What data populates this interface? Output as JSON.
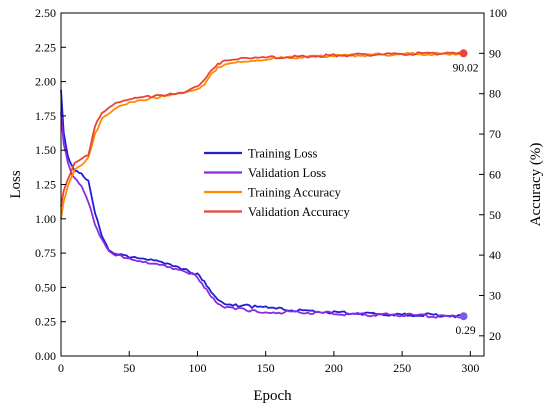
{
  "chart_data": {
    "type": "line",
    "xlabel": "Epoch",
    "ylabel_left": "Loss",
    "ylabel_right": "Accuracy (%)",
    "xlim": [
      0,
      310
    ],
    "ylim_left": [
      0.0,
      2.5
    ],
    "ylim_right": [
      15,
      100
    ],
    "x_ticks": [
      "0",
      "50",
      "100",
      "150",
      "200",
      "250",
      "300"
    ],
    "y_left_ticks": [
      "0.00",
      "0.25",
      "0.50",
      "0.75",
      "1.00",
      "1.25",
      "1.50",
      "1.75",
      "2.00",
      "2.25",
      "2.50"
    ],
    "y_right_ticks": [
      "20",
      "30",
      "40",
      "50",
      "60",
      "70",
      "80",
      "90",
      "100"
    ],
    "legend_position": "center",
    "grid": false,
    "series": [
      {
        "name": "Training Loss",
        "axis": "left",
        "color": "#1f1fd6",
        "x": [
          0,
          2,
          5,
          8,
          10,
          15,
          20,
          25,
          30,
          35,
          40,
          50,
          60,
          70,
          80,
          90,
          100,
          105,
          110,
          115,
          120,
          130,
          140,
          150,
          175,
          200,
          225,
          250,
          275,
          295
        ],
        "y": [
          1.94,
          1.62,
          1.45,
          1.38,
          1.35,
          1.32,
          1.28,
          1.05,
          0.88,
          0.78,
          0.75,
          0.72,
          0.7,
          0.69,
          0.66,
          0.63,
          0.59,
          0.55,
          0.47,
          0.41,
          0.39,
          0.37,
          0.36,
          0.35,
          0.33,
          0.32,
          0.31,
          0.3,
          0.3,
          0.29
        ]
      },
      {
        "name": "Validation Loss",
        "axis": "left",
        "color": "#8a2be2",
        "x": [
          0,
          2,
          5,
          8,
          10,
          15,
          20,
          25,
          30,
          35,
          40,
          50,
          60,
          70,
          80,
          90,
          100,
          105,
          110,
          115,
          120,
          130,
          140,
          150,
          175,
          200,
          225,
          250,
          275,
          295
        ],
        "y": [
          1.78,
          1.55,
          1.42,
          1.33,
          1.3,
          1.25,
          1.12,
          0.95,
          0.84,
          0.76,
          0.73,
          0.71,
          0.69,
          0.68,
          0.65,
          0.62,
          0.58,
          0.5,
          0.43,
          0.37,
          0.35,
          0.34,
          0.33,
          0.32,
          0.32,
          0.31,
          0.3,
          0.3,
          0.29,
          0.29
        ]
      },
      {
        "name": "Training Accuracy",
        "axis": "right",
        "color": "#ff8c00",
        "x": [
          0,
          2,
          5,
          10,
          15,
          20,
          25,
          30,
          40,
          50,
          60,
          70,
          80,
          90,
          100,
          105,
          110,
          115,
          120,
          130,
          140,
          150,
          175,
          200,
          225,
          250,
          275,
          295
        ],
        "y": [
          49.0,
          53.0,
          57.0,
          61.0,
          62.0,
          64.0,
          70.0,
          74.0,
          76.5,
          78.0,
          78.5,
          79.0,
          79.5,
          80.0,
          81.0,
          82.0,
          84.5,
          86.5,
          87.5,
          88.0,
          88.3,
          88.6,
          89.0,
          89.4,
          89.6,
          89.8,
          89.9,
          90.02
        ]
      },
      {
        "name": "Validation Accuracy",
        "axis": "right",
        "color": "#e8443a",
        "x": [
          0,
          2,
          5,
          10,
          15,
          20,
          25,
          30,
          40,
          50,
          60,
          70,
          80,
          90,
          100,
          105,
          110,
          115,
          120,
          130,
          140,
          150,
          175,
          200,
          225,
          250,
          275,
          295
        ],
        "y": [
          52.0,
          56.0,
          59.0,
          63.0,
          64.0,
          65.0,
          72.0,
          75.0,
          77.5,
          78.5,
          79.0,
          79.5,
          80.0,
          80.5,
          82.0,
          83.5,
          86.0,
          87.5,
          88.0,
          88.5,
          88.7,
          88.9,
          89.2,
          89.5,
          89.7,
          89.9,
          90.0,
          90.02
        ]
      }
    ],
    "annotations": [
      {
        "text": "90.02",
        "x": 295,
        "y": 90.02,
        "axis": "right"
      },
      {
        "text": "0.29",
        "x": 295,
        "y": 0.29,
        "axis": "left"
      }
    ]
  }
}
